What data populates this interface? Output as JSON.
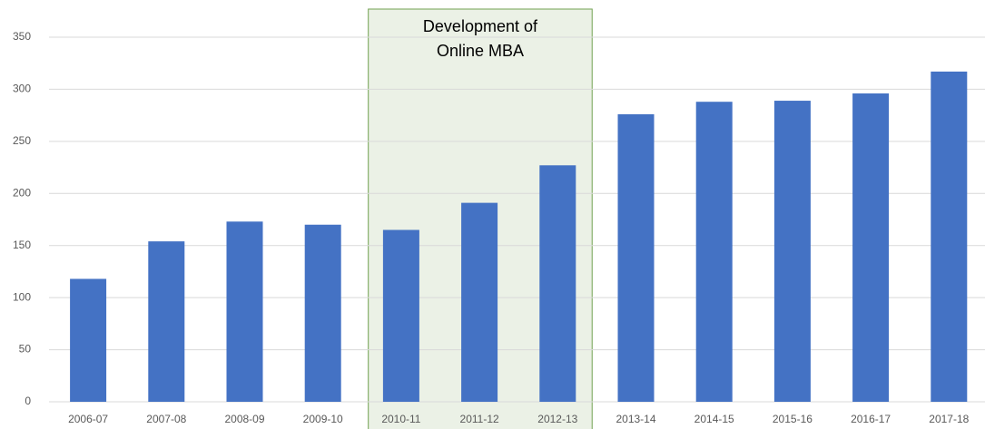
{
  "chart_data": {
    "type": "bar",
    "categories": [
      "2006-07",
      "2007-08",
      "2008-09",
      "2009-10",
      "2010-11",
      "2011-12",
      "2012-13",
      "2013-14",
      "2014-15",
      "2015-16",
      "2016-17",
      "2017-18"
    ],
    "values": [
      118,
      154,
      173,
      170,
      165,
      191,
      227,
      276,
      288,
      289,
      296,
      317
    ],
    "color": "#4472c4",
    "ylim": [
      0,
      350
    ],
    "yticks": [
      0,
      50,
      100,
      150,
      200,
      250,
      300,
      350
    ],
    "grid": true,
    "highlight": {
      "categories": [
        "2010-11",
        "2012-13"
      ],
      "text": [
        "Development of",
        "Online MBA"
      ],
      "fill": "#ebf1e6",
      "stroke": "#70a150"
    }
  }
}
